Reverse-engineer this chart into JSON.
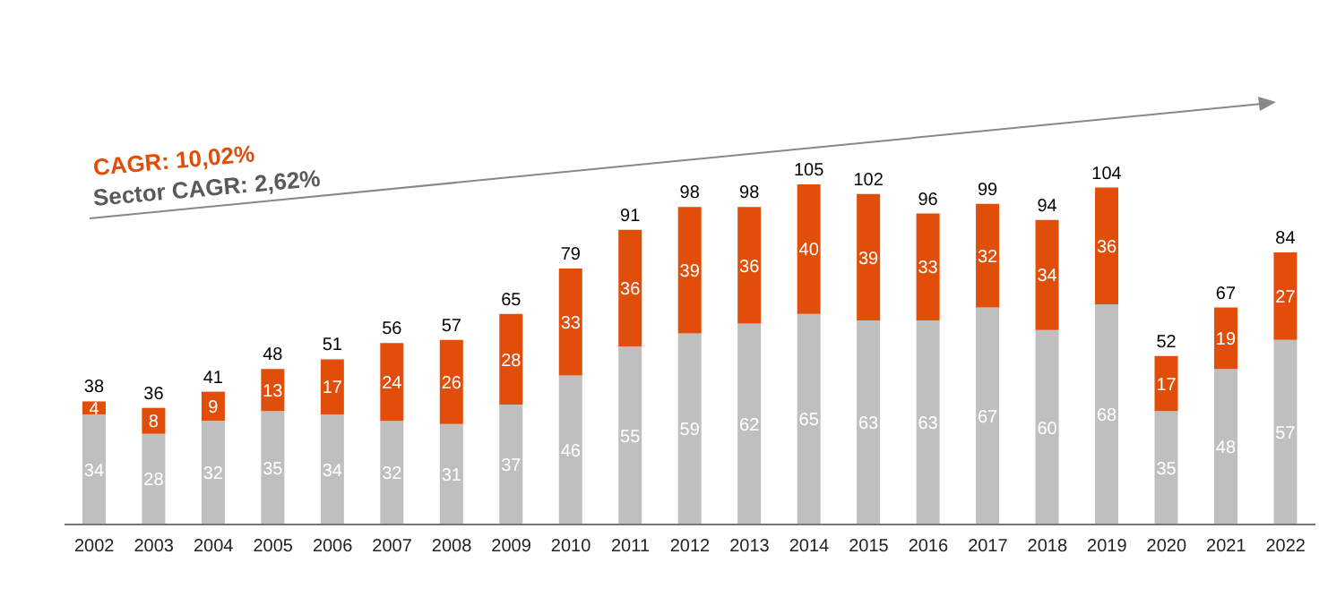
{
  "chart_data": {
    "type": "bar",
    "stacked": true,
    "data_labels": true,
    "categories": [
      "2002",
      "2003",
      "2004",
      "2005",
      "2006",
      "2007",
      "2008",
      "2009",
      "2010",
      "2011",
      "2012",
      "2013",
      "2014",
      "2015",
      "2016",
      "2017",
      "2018",
      "2019",
      "2020",
      "2021",
      "2022"
    ],
    "series": [
      {
        "color": "#bfbfbf",
        "values": [
          34,
          28,
          32,
          35,
          34,
          32,
          31,
          37,
          46,
          55,
          59,
          62,
          65,
          63,
          63,
          67,
          60,
          68,
          35,
          48,
          57
        ]
      },
      {
        "color": "#e04e0a",
        "values": [
          4,
          8,
          9,
          13,
          17,
          24,
          26,
          28,
          33,
          36,
          39,
          36,
          40,
          39,
          33,
          32,
          34,
          36,
          17,
          19,
          27
        ]
      }
    ],
    "totals": [
      "38",
      "36",
      "41",
      "48",
      "51",
      "56",
      "57",
      "65",
      "79",
      "91",
      "98",
      "98",
      "105",
      "102",
      "96",
      "99",
      "94",
      "104",
      "52",
      "67",
      "84"
    ],
    "annotations": [
      "CAGR: 10,02%",
      "Sector CAGR: 2,62%"
    ]
  }
}
